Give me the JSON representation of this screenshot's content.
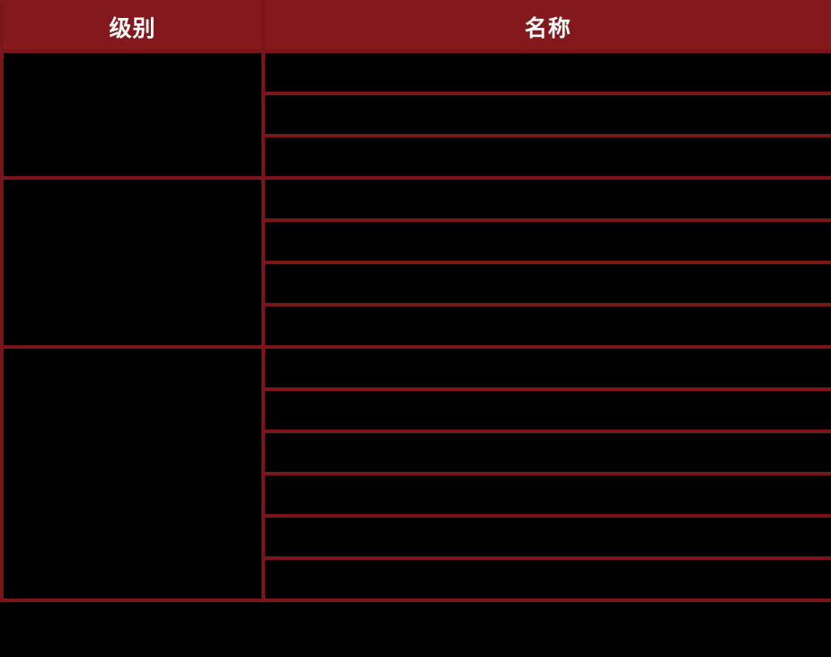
{
  "table": {
    "columns": [
      {
        "label": "级别"
      },
      {
        "label": "名称"
      }
    ],
    "groups": [
      {
        "level": "",
        "names": [
          "",
          "",
          ""
        ]
      },
      {
        "level": "",
        "names": [
          "",
          "",
          "",
          ""
        ]
      },
      {
        "level": "",
        "names": [
          "",
          "",
          "",
          "",
          "",
          ""
        ]
      }
    ]
  },
  "colors": {
    "page_bg": "#000000",
    "header_bg": "#84191d",
    "border": "#7a161a",
    "cell_bg": "#000000",
    "header_text": "#ffffff"
  }
}
